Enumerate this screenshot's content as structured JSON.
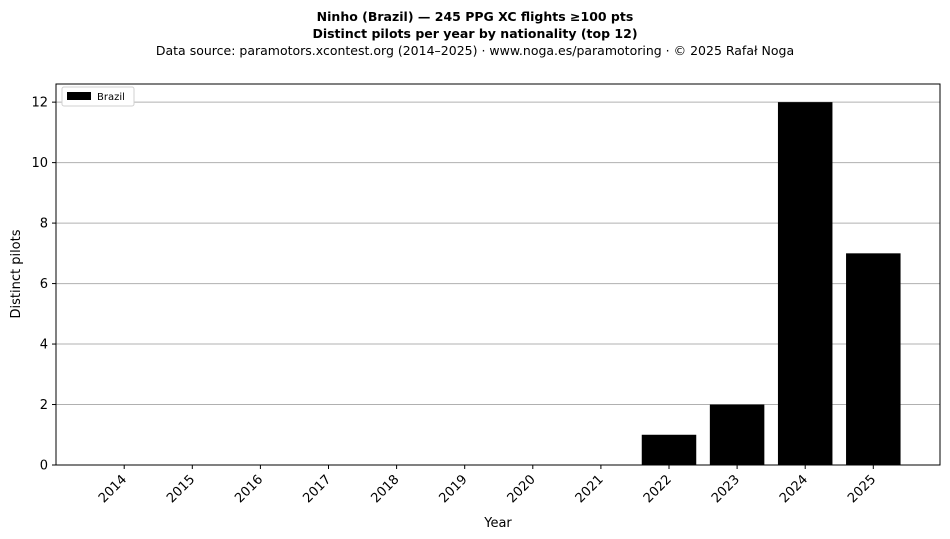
{
  "chart_data": {
    "type": "bar",
    "title": "Ninho (Brazil)  —  245 PPG XC flights ≥100 pts",
    "subtitle": "Distinct pilots per year by nationality (top 12)",
    "source_line": "Data source: paramotors.xcontest.org (2014–2025)  ·  www.noga.es/paramotoring  ·  © 2025 Rafał Noga",
    "xlabel": "Year",
    "ylabel": "Distinct pilots",
    "categories": [
      "2014",
      "2015",
      "2016",
      "2017",
      "2018",
      "2019",
      "2020",
      "2021",
      "2022",
      "2023",
      "2024",
      "2025"
    ],
    "series": [
      {
        "name": "Brazil",
        "color": "#000000",
        "values": [
          0,
          0,
          0,
          0,
          0,
          0,
          0,
          0,
          1,
          2,
          12,
          7
        ]
      }
    ],
    "ylim": [
      0,
      12.6
    ],
    "yticks": [
      0,
      2,
      4,
      6,
      8,
      10,
      12
    ],
    "grid": "horizontal",
    "legend_position": "top-left"
  }
}
